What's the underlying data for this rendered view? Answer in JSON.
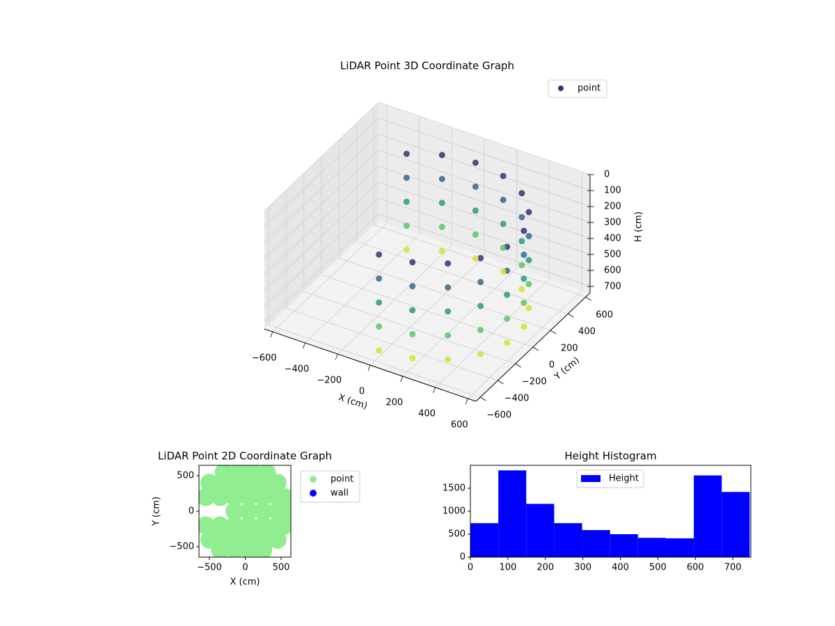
{
  "chart_data": [
    {
      "type": "scatter3d",
      "title": "LiDAR Point 3D Coordinate Graph",
      "xlabel": "X (cm)",
      "ylabel": "Y (cm)",
      "zlabel": "H (cm)",
      "cmap": "viridis",
      "zinverted": true,
      "xlim": [
        -650,
        650
      ],
      "ylim": [
        -650,
        650
      ],
      "zlim": [
        0,
        740
      ],
      "xticks": [
        {
          "value": -600,
          "label": "−600"
        },
        {
          "value": -400,
          "label": "−400"
        },
        {
          "value": -200,
          "label": "−200"
        },
        0,
        200,
        400,
        600
      ],
      "yticks": [
        {
          "value": -600,
          "label": "−600"
        },
        {
          "value": -400,
          "label": "−400"
        },
        {
          "value": -200,
          "label": "−200"
        },
        0,
        200,
        400,
        600
      ],
      "zticks": [
        0,
        100,
        200,
        300,
        400,
        500,
        600,
        700
      ],
      "series": [
        {
          "name": "point",
          "x": [
            0,
            0,
            0,
            0,
            0,
            188,
            188,
            188,
            188,
            188,
            354,
            354,
            354,
            354,
            354,
            476,
            476,
            476,
            476,
            476,
            542,
            542,
            542,
            542,
            542,
            542,
            542,
            542,
            542,
            542,
            476,
            476,
            476,
            476,
            476,
            354,
            354,
            354,
            354,
            354,
            188,
            188,
            188,
            188,
            188,
            0,
            0,
            0,
            0,
            0,
            -188,
            -188,
            -188,
            -188,
            -188,
            -354,
            -354,
            -354,
            -354,
            -354
          ],
          "y": [
            -550,
            -550,
            -550,
            -550,
            -550,
            -517,
            -517,
            -517,
            -517,
            -517,
            -421,
            -421,
            -421,
            -421,
            -421,
            -275,
            -275,
            -275,
            -275,
            -275,
            -96,
            -96,
            -96,
            -96,
            -96,
            96,
            96,
            96,
            96,
            96,
            275,
            275,
            275,
            275,
            275,
            421,
            421,
            421,
            421,
            421,
            517,
            517,
            517,
            517,
            517,
            550,
            550,
            550,
            550,
            550,
            517,
            517,
            517,
            517,
            517,
            421,
            421,
            421,
            421,
            421
          ],
          "z": [
            100,
            250,
            400,
            550,
            700,
            100,
            250,
            400,
            550,
            700,
            100,
            250,
            400,
            550,
            700,
            100,
            250,
            400,
            550,
            700,
            100,
            250,
            400,
            550,
            700,
            100,
            250,
            400,
            550,
            700,
            100,
            250,
            400,
            550,
            700,
            100,
            250,
            400,
            550,
            700,
            100,
            250,
            400,
            550,
            700,
            100,
            250,
            400,
            550,
            700,
            100,
            250,
            400,
            550,
            700,
            100,
            250,
            400,
            550,
            700
          ]
        }
      ]
    },
    {
      "type": "scatter",
      "title": "LiDAR Point 2D Coordinate Graph",
      "xlabel": "X (cm)",
      "ylabel": "Y (cm)",
      "xlim": [
        -645,
        636
      ],
      "ylim": [
        -647,
        647
      ],
      "xticks": [
        {
          "value": -500,
          "label": "−500"
        },
        0,
        500
      ],
      "yticks": [
        {
          "value": -500,
          "label": "−500"
        },
        0,
        500
      ],
      "series": [
        {
          "name": "point",
          "color": "#90ee90",
          "x": [
            -300,
            -100,
            100,
            300,
            -500,
            -300,
            -100,
            100,
            300,
            450,
            -550,
            -350,
            -150,
            50,
            250,
            450,
            550,
            -150,
            50,
            250,
            450,
            550,
            -550,
            -350,
            -150,
            50,
            250,
            450,
            550,
            -500,
            -300,
            -100,
            100,
            300,
            450,
            -350,
            -150,
            50,
            250
          ],
          "y": [
            550,
            550,
            550,
            550,
            400,
            400,
            400,
            400,
            400,
            400,
            200,
            200,
            200,
            200,
            200,
            200,
            200,
            0,
            0,
            0,
            0,
            0,
            -200,
            -200,
            -200,
            -200,
            -200,
            -200,
            -200,
            -400,
            -400,
            -400,
            -400,
            -400,
            -400,
            -550,
            -550,
            -550,
            -550
          ]
        },
        {
          "name": "wall",
          "color": "#0000ff",
          "x": [],
          "y": []
        }
      ]
    },
    {
      "type": "histogram",
      "title": "Height Histogram",
      "name": "Height",
      "color": "#0000ff",
      "bins": [
        0,
        74.5,
        149,
        223.5,
        298,
        372.5,
        447,
        521.5,
        596,
        670.5,
        745
      ],
      "values": [
        740,
        1890,
        1160,
        740,
        590,
        500,
        420,
        410,
        1780,
        1420
      ],
      "xlim": [
        0,
        748
      ],
      "ylim": [
        0,
        2000
      ],
      "xticks": [
        0,
        100,
        200,
        300,
        400,
        500,
        600,
        700
      ],
      "yticks": [
        0,
        500,
        1000,
        1500
      ]
    }
  ]
}
